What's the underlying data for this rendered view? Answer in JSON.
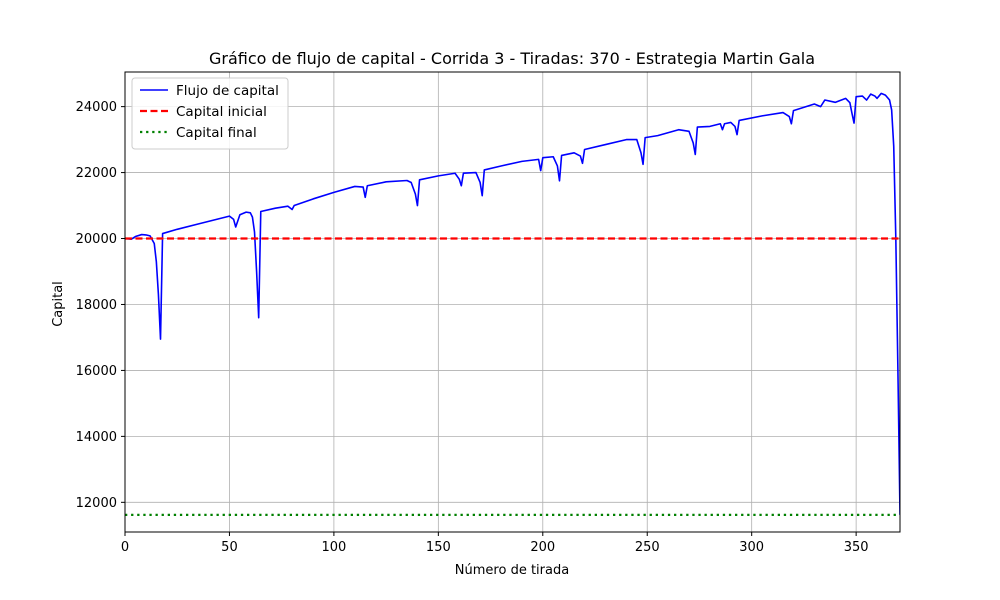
{
  "chart_data": {
    "type": "line",
    "title": "Gráfico de flujo de capital - Corrida 3 - Tiradas: 370 - Estrategia Martin Gala",
    "xlabel": "Número de tirada",
    "ylabel": "Capital",
    "xlim": [
      0,
      371
    ],
    "ylim": [
      11100,
      25050
    ],
    "xticks": [
      0,
      50,
      100,
      150,
      200,
      250,
      300,
      350
    ],
    "yticks": [
      12000,
      14000,
      16000,
      18000,
      20000,
      22000,
      24000
    ],
    "grid": true,
    "legend_position": "upper-left",
    "series": [
      {
        "name": "Flujo de capital",
        "color": "#0000ff",
        "style": "solid",
        "points": [
          [
            0,
            20000
          ],
          [
            3,
            19980
          ],
          [
            5,
            20060
          ],
          [
            8,
            20120
          ],
          [
            10,
            20110
          ],
          [
            12,
            20080
          ],
          [
            14,
            19850
          ],
          [
            15,
            19300
          ],
          [
            16,
            18300
          ],
          [
            17,
            16950
          ],
          [
            18,
            20150
          ],
          [
            25,
            20280
          ],
          [
            35,
            20440
          ],
          [
            45,
            20600
          ],
          [
            50,
            20680
          ],
          [
            52,
            20580
          ],
          [
            53,
            20350
          ],
          [
            55,
            20720
          ],
          [
            58,
            20800
          ],
          [
            60,
            20780
          ],
          [
            61,
            20650
          ],
          [
            62,
            20200
          ],
          [
            63,
            19000
          ],
          [
            64,
            17600
          ],
          [
            65,
            20820
          ],
          [
            72,
            20920
          ],
          [
            78,
            20980
          ],
          [
            80,
            20880
          ],
          [
            81,
            21000
          ],
          [
            90,
            21200
          ],
          [
            100,
            21400
          ],
          [
            110,
            21580
          ],
          [
            114,
            21560
          ],
          [
            115,
            21250
          ],
          [
            116,
            21600
          ],
          [
            125,
            21720
          ],
          [
            135,
            21760
          ],
          [
            137,
            21700
          ],
          [
            139,
            21350
          ],
          [
            140,
            21000
          ],
          [
            141,
            21780
          ],
          [
            150,
            21900
          ],
          [
            158,
            21980
          ],
          [
            160,
            21800
          ],
          [
            161,
            21600
          ],
          [
            162,
            21980
          ],
          [
            168,
            22000
          ],
          [
            170,
            21700
          ],
          [
            171,
            21300
          ],
          [
            172,
            22080
          ],
          [
            180,
            22200
          ],
          [
            190,
            22340
          ],
          [
            198,
            22400
          ],
          [
            199,
            22060
          ],
          [
            200,
            22450
          ],
          [
            205,
            22480
          ],
          [
            207,
            22200
          ],
          [
            208,
            21750
          ],
          [
            209,
            22520
          ],
          [
            215,
            22600
          ],
          [
            218,
            22500
          ],
          [
            219,
            22280
          ],
          [
            220,
            22700
          ],
          [
            230,
            22850
          ],
          [
            240,
            23000
          ],
          [
            245,
            23000
          ],
          [
            247,
            22600
          ],
          [
            248,
            22250
          ],
          [
            249,
            23060
          ],
          [
            255,
            23120
          ],
          [
            265,
            23300
          ],
          [
            270,
            23250
          ],
          [
            272,
            22900
          ],
          [
            273,
            22550
          ],
          [
            274,
            23380
          ],
          [
            280,
            23400
          ],
          [
            285,
            23480
          ],
          [
            286,
            23300
          ],
          [
            287,
            23480
          ],
          [
            290,
            23520
          ],
          [
            292,
            23400
          ],
          [
            293,
            23150
          ],
          [
            294,
            23580
          ],
          [
            305,
            23720
          ],
          [
            315,
            23820
          ],
          [
            318,
            23700
          ],
          [
            319,
            23480
          ],
          [
            320,
            23880
          ],
          [
            330,
            24080
          ],
          [
            333,
            24000
          ],
          [
            335,
            24200
          ],
          [
            340,
            24130
          ],
          [
            345,
            24250
          ],
          [
            347,
            24120
          ],
          [
            348,
            23800
          ],
          [
            349,
            23500
          ],
          [
            350,
            24300
          ],
          [
            353,
            24320
          ],
          [
            355,
            24200
          ],
          [
            357,
            24380
          ],
          [
            359,
            24320
          ],
          [
            360,
            24250
          ],
          [
            362,
            24400
          ],
          [
            364,
            24350
          ],
          [
            366,
            24200
          ],
          [
            367,
            23900
          ],
          [
            368,
            22800
          ],
          [
            369,
            20000
          ],
          [
            370,
            16000
          ],
          [
            371,
            11620
          ]
        ]
      },
      {
        "name": "Capital inicial",
        "color": "#ff0000",
        "style": "dashed",
        "y": 20000
      },
      {
        "name": "Capital final",
        "color": "#008000",
        "style": "dotted",
        "y": 11620
      }
    ]
  }
}
